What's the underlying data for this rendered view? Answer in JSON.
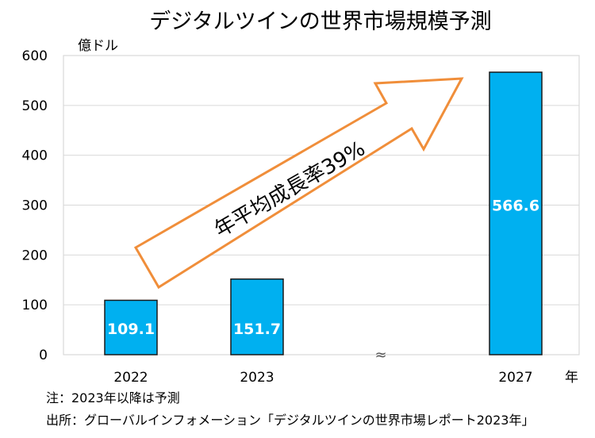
{
  "chart_data": {
    "type": "bar",
    "title": "デジタルツインの世界市場規模予測",
    "ylabel": "億ドル",
    "xlabel": "年",
    "ylim": [
      0,
      600
    ],
    "yticks": [
      0,
      100,
      200,
      300,
      400,
      500,
      600
    ],
    "categories": [
      "2022",
      "2023",
      "2027"
    ],
    "values": [
      109.1,
      151.7,
      566.6
    ],
    "value_labels": [
      "109.1",
      "151.7",
      "566.6"
    ],
    "axis_break_symbol": "≈",
    "annotation": "年平均成長率39%",
    "colors": {
      "bar": "#00b0f0",
      "arrow": "#f08e3a",
      "grid": "#d9d9d9",
      "value_label": "#ffffff"
    }
  },
  "notes": {
    "note": "注：2023年以降は予測",
    "source": "出所：グローバルインフォメーション「デジタルツインの世界市場レポート2023年」"
  }
}
